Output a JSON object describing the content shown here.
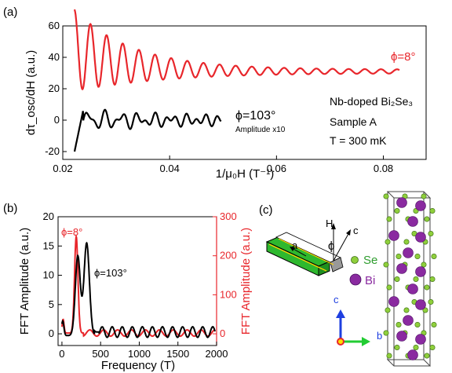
{
  "chart_data": [
    {
      "panel": "(a)",
      "type": "line",
      "xlabel": "1/μ₀H (T⁻¹)",
      "ylabel": "dτ_osc/dH (a.u.)",
      "xlim": [
        0.02,
        0.088
      ],
      "ylim": [
        -25,
        60
      ],
      "xticks": [
        "0.02",
        "0.04",
        "0.06",
        "0.08"
      ],
      "yticks": [
        "-20",
        "0",
        "20",
        "40",
        "60"
      ],
      "annotations": {
        "red_label": "ϕ=8°",
        "black_label": "ϕ=103°",
        "black_note": "Amplitude x10",
        "info1": "Nb-doped Bi₂Se₃",
        "info2": "Sample A",
        "info3": "T = 300 mK"
      },
      "series": [
        {
          "color": "#e8262b",
          "x_range": [
            0.0222,
            0.083
          ],
          "peaks_x": [
            0.0222,
            0.0268,
            0.0298,
            0.0328,
            0.0358,
            0.0388,
            0.0418,
            0.0448,
            0.0478,
            0.0508,
            0.054,
            0.057,
            0.06,
            0.063,
            0.066,
            0.069,
            0.072,
            0.075,
            0.078,
            0.081
          ],
          "trend": "decaying oscillation around ~32"
        },
        {
          "color": "#000000",
          "x_range": [
            0.0222,
            0.0496
          ],
          "trend": "oscillation around ~0"
        }
      ]
    },
    {
      "panel": "(b)",
      "type": "line",
      "xlabel": "Frequency (T)",
      "ylabel": "FFT Amplitude (a.u.)",
      "ylabel_right": "FFT Amplitude (a.u.)",
      "xlim": [
        -50,
        2000
      ],
      "ylim": [
        -2,
        20
      ],
      "ylim_right": [
        -30,
        300
      ],
      "xticks": [
        "0",
        "500",
        "1000",
        "1500",
        "2000"
      ],
      "yticks": [
        "0",
        "5",
        "10",
        "15",
        "20"
      ],
      "yticks_right": [
        "0",
        "100",
        "200",
        "300"
      ],
      "annotations": {
        "red_label": "ϕ=8°",
        "black_label": "ϕ=103°"
      },
      "series": [
        {
          "color": "#000000",
          "axis": "left",
          "peaks": [
            [
              20,
              2.5
            ],
            [
              200,
              13.6
            ],
            [
              320,
              15.8
            ]
          ]
        },
        {
          "color": "#e8262b",
          "axis": "right",
          "peaks": [
            [
              20,
              35
            ],
            [
              185,
              247
            ]
          ]
        }
      ]
    }
  ],
  "panels": {
    "a": "(a)",
    "b": "(b)",
    "c": "(c)"
  },
  "crystal": {
    "labels": {
      "H": "H",
      "phi": "ϕ",
      "c": "c",
      "a": "a",
      "se": "Se",
      "bi": "Bi",
      "axis_c": "c",
      "axis_b": "b"
    },
    "colors": {
      "se": "#8fcf3c",
      "bi": "#8a2aa0",
      "slab": "#2eb82e",
      "axis_c": "#1e3fe0",
      "axis_b": "#22cc33"
    }
  }
}
